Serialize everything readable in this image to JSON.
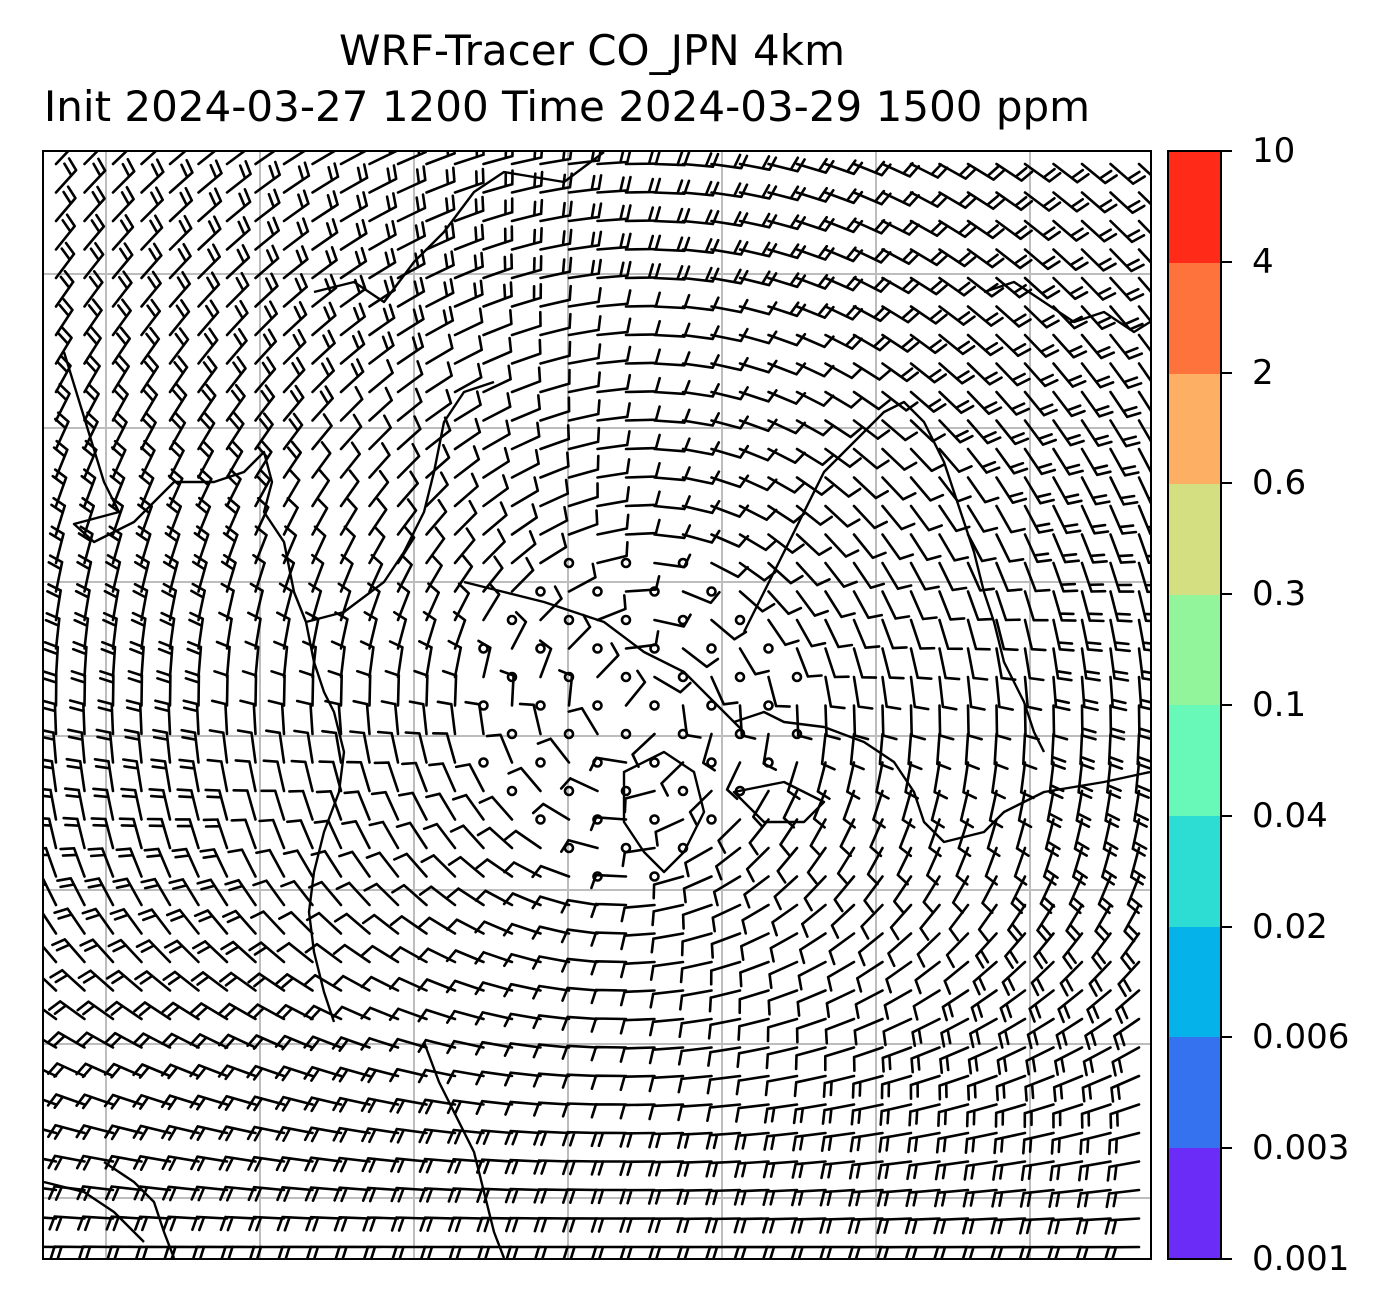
{
  "title": {
    "line1": "WRF-Tracer CO_JPN 4km",
    "line2": "Init 2024-03-27 1200 Time 2024-03-29 1500 ppm"
  },
  "colorbar": {
    "levels": [
      "0.001",
      "0.003",
      "0.006",
      "0.02",
      "0.04",
      "0.1",
      "0.3",
      "0.6",
      "2",
      "4",
      "10"
    ],
    "colors": [
      "#6a2cf6",
      "#3472f0",
      "#06b2ea",
      "#2dddd3",
      "#68f8b7",
      "#93f59b",
      "#d3df80",
      "#fdb063",
      "#fe733c",
      "#ff2a17"
    ]
  },
  "map": {
    "grid_color": "#bdbdbd",
    "coast_color": "#000000",
    "barb_color": "#000000",
    "circulation": "cyclonic low centred over the Sea of Japan with calm winds near the centre"
  }
}
